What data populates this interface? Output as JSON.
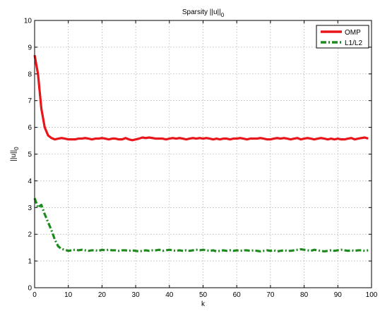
{
  "chart_data": {
    "type": "line",
    "title_main": "Sparsity ||u||",
    "title_sub": "0",
    "xlabel": "k",
    "ylabel_main": "||u||",
    "ylabel_sub": "0",
    "xlim": [
      0,
      100
    ],
    "ylim": [
      0,
      10
    ],
    "xticks": [
      0,
      10,
      20,
      30,
      40,
      50,
      60,
      70,
      80,
      90,
      100
    ],
    "yticks": [
      0,
      1,
      2,
      3,
      4,
      5,
      6,
      7,
      8,
      9,
      10
    ],
    "grid": true,
    "legend_position": "top-right",
    "series": [
      {
        "name": "OMP",
        "color": "#e8161b",
        "style": "solid",
        "x": [
          0,
          1,
          2,
          3,
          4,
          5,
          6,
          7,
          8,
          9,
          10,
          11,
          12,
          13,
          14,
          15,
          16,
          17,
          18,
          19,
          20,
          21,
          22,
          23,
          24,
          25,
          26,
          27,
          28,
          29,
          30,
          31,
          32,
          33,
          34,
          35,
          36,
          37,
          38,
          39,
          40,
          41,
          42,
          43,
          44,
          45,
          46,
          47,
          48,
          49,
          50,
          51,
          52,
          53,
          54,
          55,
          56,
          57,
          58,
          59,
          60,
          61,
          62,
          63,
          64,
          65,
          66,
          67,
          68,
          69,
          70,
          71,
          72,
          73,
          74,
          75,
          76,
          77,
          78,
          79,
          80,
          81,
          82,
          83,
          84,
          85,
          86,
          87,
          88,
          89,
          90,
          91,
          92,
          93,
          94,
          95,
          96,
          97,
          98,
          99
        ],
        "y": [
          8.7,
          8.0,
          6.7,
          6.0,
          5.7,
          5.6,
          5.55,
          5.58,
          5.6,
          5.58,
          5.55,
          5.55,
          5.55,
          5.58,
          5.58,
          5.6,
          5.58,
          5.55,
          5.58,
          5.58,
          5.6,
          5.58,
          5.55,
          5.58,
          5.58,
          5.55,
          5.55,
          5.6,
          5.55,
          5.52,
          5.55,
          5.58,
          5.62,
          5.6,
          5.62,
          5.6,
          5.58,
          5.58,
          5.58,
          5.55,
          5.58,
          5.6,
          5.58,
          5.6,
          5.58,
          5.55,
          5.58,
          5.6,
          5.58,
          5.6,
          5.58,
          5.6,
          5.58,
          5.55,
          5.58,
          5.55,
          5.58,
          5.58,
          5.55,
          5.58,
          5.58,
          5.6,
          5.58,
          5.55,
          5.58,
          5.58,
          5.58,
          5.6,
          5.58,
          5.55,
          5.55,
          5.58,
          5.6,
          5.58,
          5.6,
          5.58,
          5.55,
          5.58,
          5.6,
          5.55,
          5.58,
          5.6,
          5.58,
          5.55,
          5.58,
          5.6,
          5.58,
          5.55,
          5.58,
          5.55,
          5.58,
          5.55,
          5.55,
          5.58,
          5.6,
          5.55,
          5.58,
          5.6,
          5.62,
          5.58
        ]
      },
      {
        "name": "L1/L2",
        "color": "#1e8a1e",
        "style": "dashdot",
        "x": [
          0,
          1,
          2,
          3,
          4,
          5,
          6,
          7,
          8,
          9,
          10,
          11,
          12,
          13,
          14,
          15,
          16,
          17,
          18,
          19,
          20,
          21,
          22,
          23,
          24,
          25,
          26,
          27,
          28,
          29,
          30,
          31,
          32,
          33,
          34,
          35,
          36,
          37,
          38,
          39,
          40,
          41,
          42,
          43,
          44,
          45,
          46,
          47,
          48,
          49,
          50,
          51,
          52,
          53,
          54,
          55,
          56,
          57,
          58,
          59,
          60,
          61,
          62,
          63,
          64,
          65,
          66,
          67,
          68,
          69,
          70,
          71,
          72,
          73,
          74,
          75,
          76,
          77,
          78,
          79,
          80,
          81,
          82,
          83,
          84,
          85,
          86,
          87,
          88,
          89,
          90,
          91,
          92,
          93,
          94,
          95,
          96,
          97,
          98,
          99
        ],
        "y": [
          3.35,
          3.0,
          3.1,
          2.75,
          2.45,
          2.15,
          1.8,
          1.55,
          1.45,
          1.42,
          1.38,
          1.4,
          1.42,
          1.4,
          1.42,
          1.4,
          1.38,
          1.4,
          1.4,
          1.38,
          1.42,
          1.4,
          1.42,
          1.4,
          1.4,
          1.38,
          1.4,
          1.4,
          1.38,
          1.4,
          1.38,
          1.36,
          1.38,
          1.4,
          1.38,
          1.4,
          1.4,
          1.42,
          1.38,
          1.4,
          1.42,
          1.4,
          1.38,
          1.4,
          1.38,
          1.4,
          1.38,
          1.4,
          1.42,
          1.4,
          1.42,
          1.4,
          1.38,
          1.4,
          1.36,
          1.38,
          1.4,
          1.38,
          1.4,
          1.38,
          1.4,
          1.38,
          1.4,
          1.4,
          1.38,
          1.4,
          1.38,
          1.36,
          1.38,
          1.4,
          1.38,
          1.4,
          1.36,
          1.38,
          1.4,
          1.38,
          1.38,
          1.4,
          1.42,
          1.44,
          1.42,
          1.4,
          1.38,
          1.42,
          1.4,
          1.38,
          1.36,
          1.38,
          1.4,
          1.38,
          1.4,
          1.42,
          1.4,
          1.38,
          1.4,
          1.38,
          1.4,
          1.4,
          1.38,
          1.4
        ]
      }
    ]
  }
}
